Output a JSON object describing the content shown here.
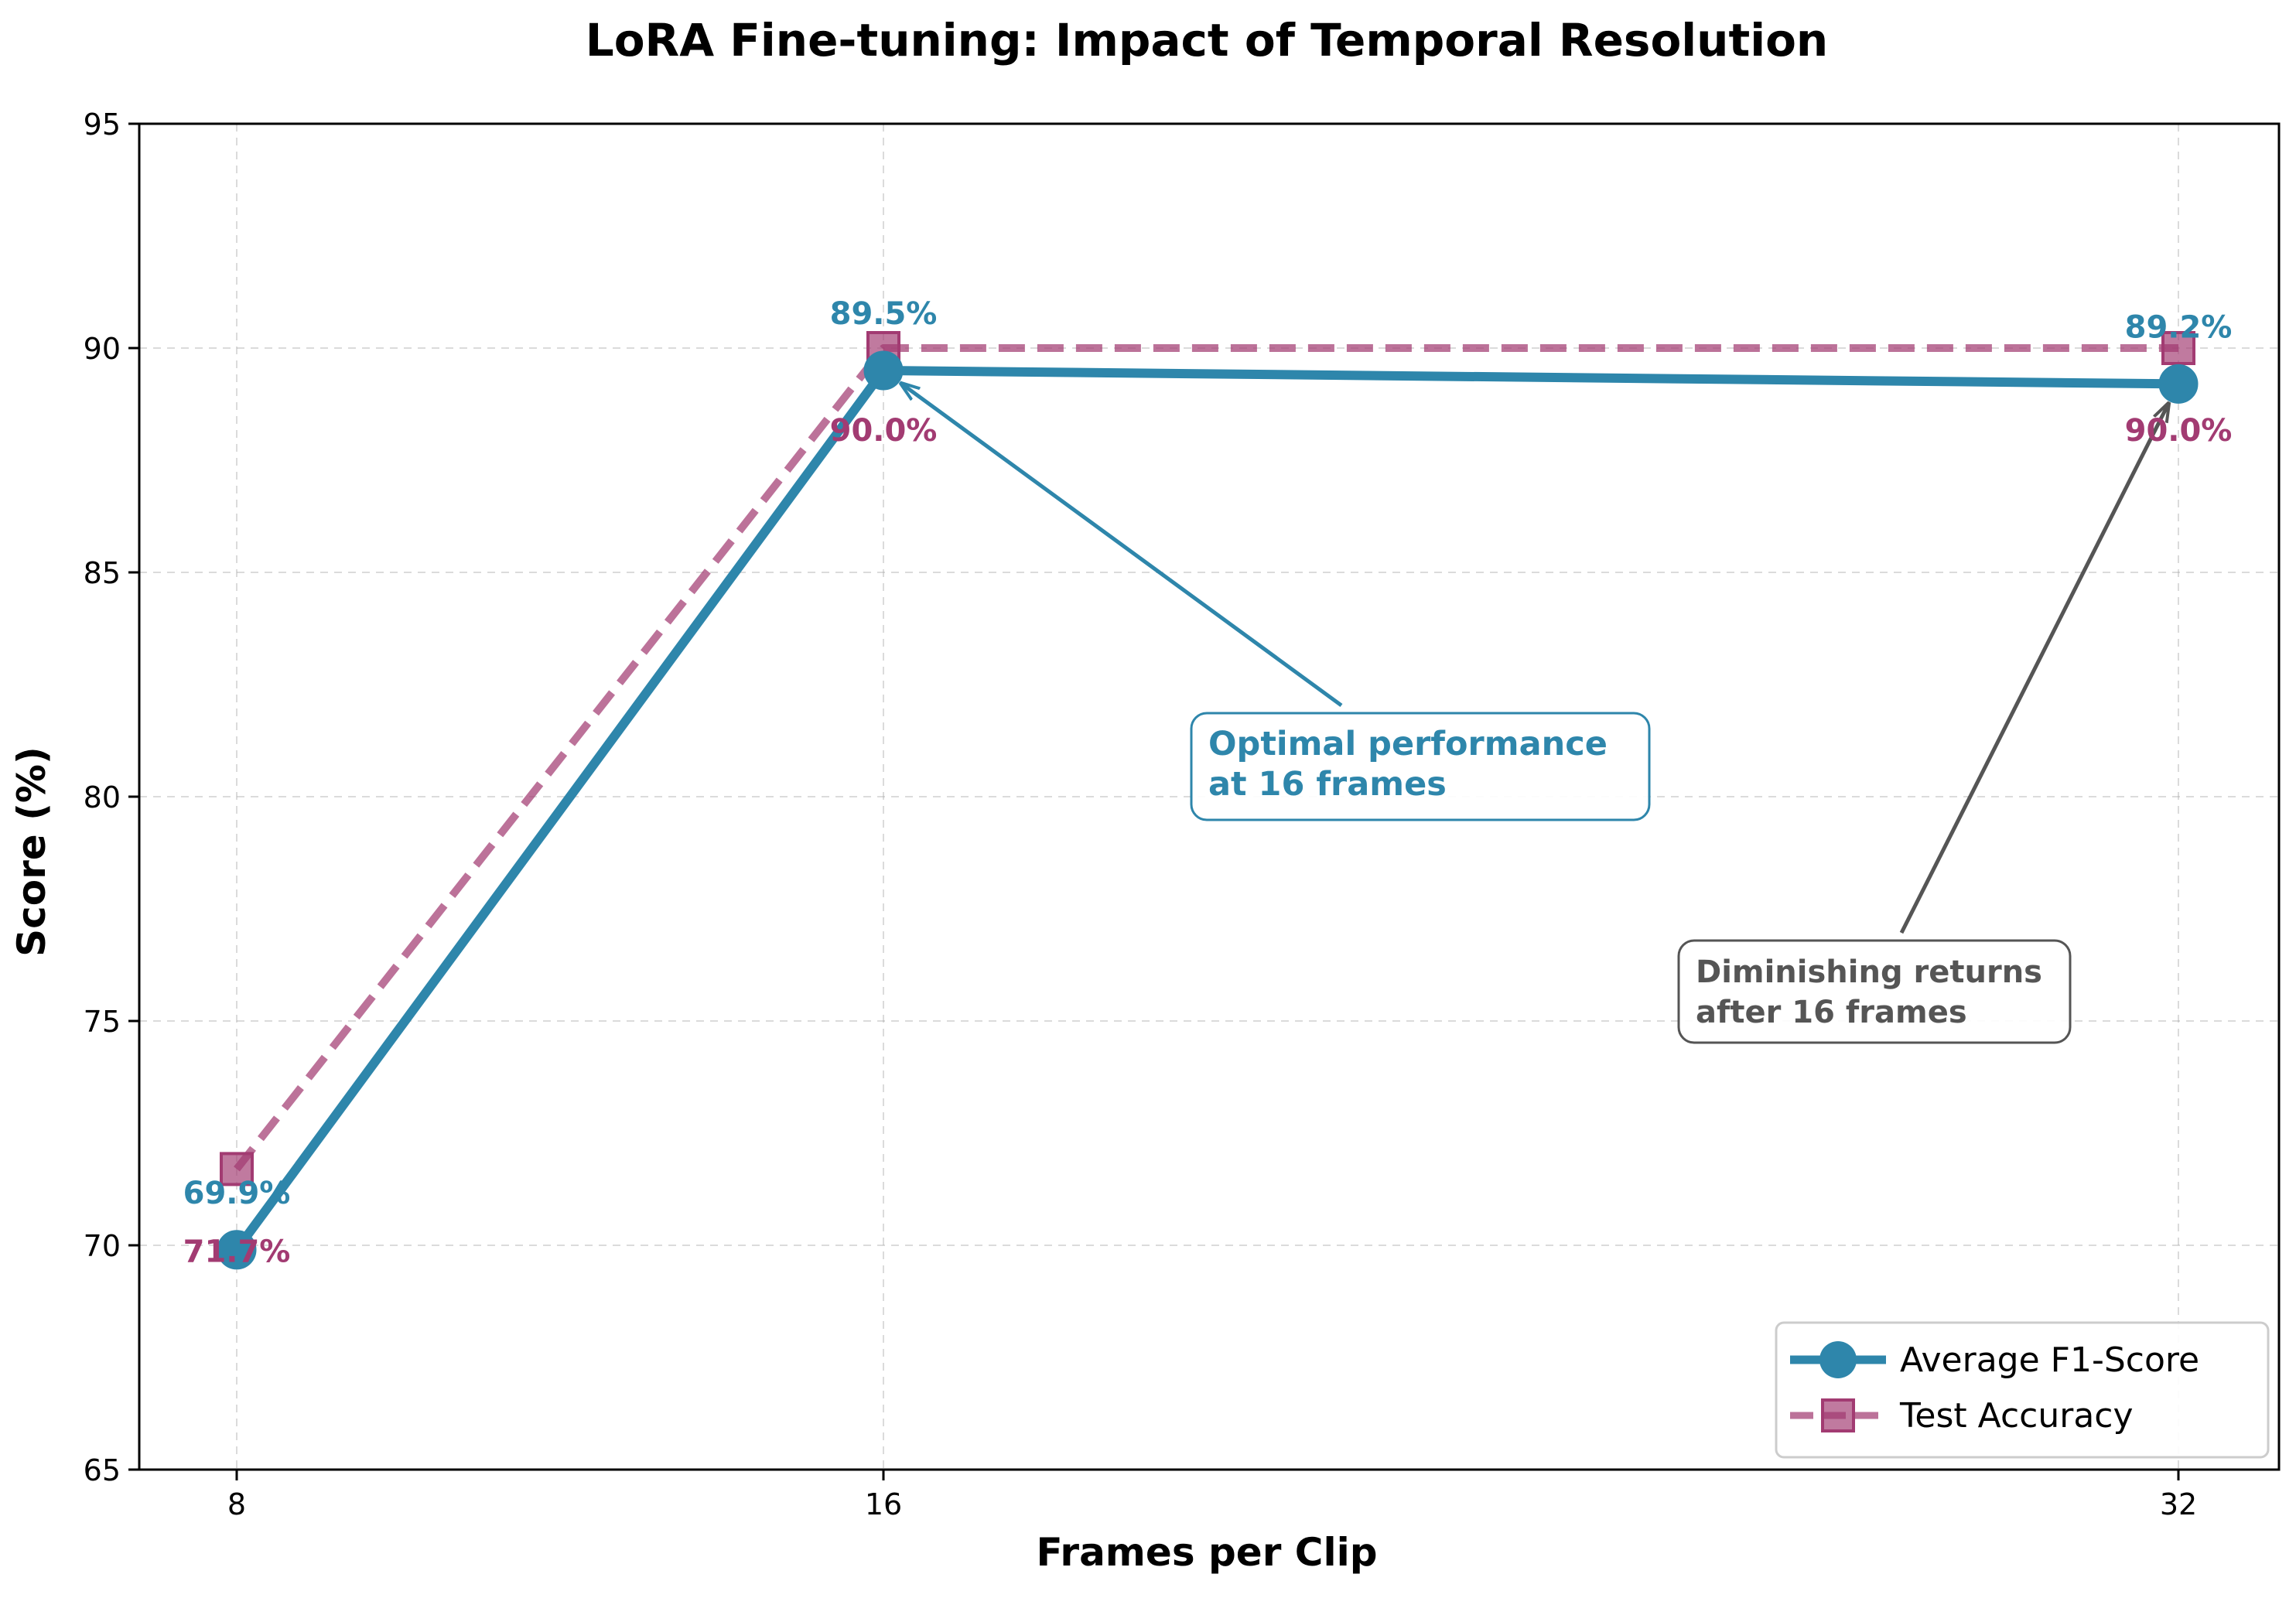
{
  "chart_data": {
    "type": "line",
    "title": "LoRA Fine-tuning: Impact of Temporal Resolution",
    "xlabel": "Frames per Clip",
    "ylabel": "Score (%)",
    "x": [
      8,
      16,
      32
    ],
    "x_tick_labels": [
      "8",
      "16",
      "32"
    ],
    "ylim": [
      65,
      95
    ],
    "y_ticks": [
      65,
      70,
      75,
      80,
      85,
      90,
      95
    ],
    "grid": true,
    "legend_position": "lower-right",
    "series": [
      {
        "name": "Average F1-Score",
        "values": [
          69.9,
          89.5,
          89.2
        ],
        "labels": [
          "69.9%",
          "89.5%",
          "89.2%"
        ],
        "color": "#2E86AB",
        "line_style": "solid",
        "marker": "circle"
      },
      {
        "name": "Test Accuracy",
        "values": [
          71.7,
          90.0,
          90.0
        ],
        "labels": [
          "71.7%",
          "90.0%",
          "90.0%"
        ],
        "color": "#A23B72",
        "line_style": "dashed",
        "marker": "square"
      }
    ],
    "annotations": [
      {
        "lines": [
          "Optimal performance",
          "at 16 frames"
        ],
        "target_x": 16,
        "target_y": 89.5,
        "color": "#2E86AB"
      },
      {
        "lines": [
          "Diminishing returns",
          "after 16 frames"
        ],
        "target_x": 32,
        "target_y": 89.2,
        "color": "#555555"
      }
    ]
  }
}
